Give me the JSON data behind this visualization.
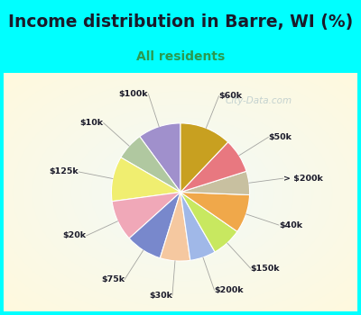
{
  "title": "Income distribution in Barre, WI (%)",
  "subtitle": "All residents",
  "watermark": "© City-Data.com",
  "labels": [
    "$100k",
    "$10k",
    "$125k",
    "$20k",
    "$75k",
    "$30k",
    "$200k",
    "$150k",
    "$40k",
    "> $200k",
    "$50k",
    "$60k"
  ],
  "sizes": [
    10.0,
    6.5,
    10.5,
    9.5,
    8.5,
    7.0,
    6.0,
    7.0,
    9.0,
    5.5,
    8.0,
    12.0
  ],
  "colors": [
    "#a090cc",
    "#b0c8a0",
    "#f0ee70",
    "#f0a8b8",
    "#7888cc",
    "#f5c8a0",
    "#a0b8e8",
    "#c8e860",
    "#f0a84a",
    "#c8c0a0",
    "#e87880",
    "#c8a020"
  ],
  "bg_cyan": "#00ffff",
  "bg_chart": "#e8f8ee",
  "title_color": "#1a1a2a",
  "subtitle_color": "#2a9a50",
  "startangle": 90,
  "figsize": [
    4.0,
    3.5
  ],
  "dpi": 100,
  "title_fontsize": 13.5,
  "subtitle_fontsize": 10
}
